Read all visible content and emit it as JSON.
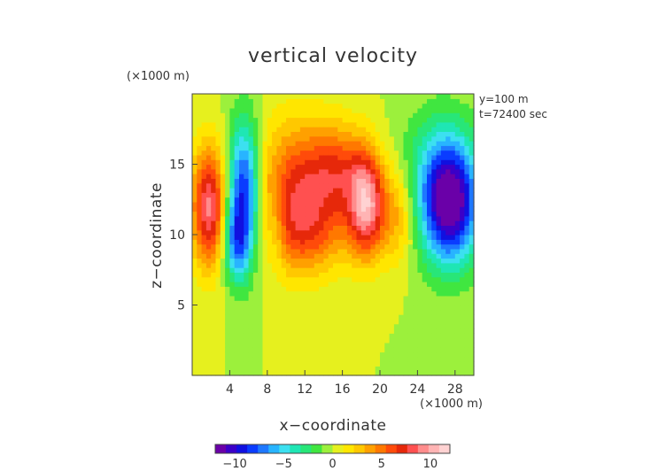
{
  "chart_data": {
    "type": "heatmap",
    "title": "vertical velocity",
    "xlabel": "x−coordinate",
    "ylabel": "z−coordinate",
    "x_unit": "(×1000 m)",
    "y_unit": "(×1000 m)",
    "annotation_lines": [
      "y=100 m",
      "t=72400 sec"
    ],
    "xlim": [
      0,
      30
    ],
    "ylim": [
      0,
      20
    ],
    "x_ticks": [
      4,
      8,
      12,
      16,
      20,
      24,
      28
    ],
    "x_tick_labels": [
      "4",
      "8",
      "12",
      "16",
      "20",
      "24",
      "28"
    ],
    "y_ticks": [
      5,
      10,
      15
    ],
    "y_tick_labels": [
      "5",
      "10",
      "15"
    ],
    "colorbar": {
      "range": [
        -12,
        12
      ],
      "ticks": [
        -10,
        -5,
        0,
        5,
        10
      ],
      "tick_labels": [
        "−10",
        "−5",
        "0",
        "5",
        "10"
      ],
      "colors": [
        "#6a00a8",
        "#3b00c8",
        "#1010e0",
        "#0a3cff",
        "#1e78ff",
        "#28b4ff",
        "#3ce0f0",
        "#1fe6b4",
        "#28e678",
        "#40e640",
        "#9cf03c",
        "#e6f01e",
        "#ffe600",
        "#ffc800",
        "#ffa000",
        "#ff7800",
        "#ff4b0a",
        "#e6280a",
        "#ff5050",
        "#ff8c8c",
        "#ffb4b4",
        "#ffd2d2"
      ]
    },
    "features": [
      {
        "x": 1.8,
        "z": 12.0,
        "value": 9,
        "sx": 1.3,
        "sz": 3.0
      },
      {
        "x": 5.5,
        "z": 13.0,
        "value": -9,
        "sx": 1.2,
        "sz": 3.5
      },
      {
        "x": 4.6,
        "z": 9.5,
        "value": -5,
        "sx": 1.0,
        "sz": 2.0
      },
      {
        "x": 11.0,
        "z": 13.0,
        "value": 6.5,
        "sx": 2.6,
        "sz": 3.5
      },
      {
        "x": 15.5,
        "z": 14.5,
        "value": 5.5,
        "sx": 2.2,
        "sz": 2.4
      },
      {
        "x": 18.6,
        "z": 12.2,
        "value": 9.5,
        "sx": 1.4,
        "sz": 2.6
      },
      {
        "x": 13.0,
        "z": 10.0,
        "value": 3,
        "sx": 3.0,
        "sz": 2.0
      },
      {
        "x": 8.0,
        "z": 12.0,
        "value": 1,
        "sx": 0.6,
        "sz": 3.0
      },
      {
        "x": 22.0,
        "z": 11.5,
        "value": 4,
        "sx": 1.4,
        "sz": 2.5
      },
      {
        "x": 27.6,
        "z": 12.3,
        "value": -10,
        "sx": 2.0,
        "sz": 3.0
      },
      {
        "x": 26.0,
        "z": 13.5,
        "value": -4,
        "sx": 3.0,
        "sz": 3.5
      },
      {
        "x": 8.6,
        "z": 10.5,
        "value": -2,
        "sx": 0.8,
        "sz": 2.2
      }
    ]
  }
}
